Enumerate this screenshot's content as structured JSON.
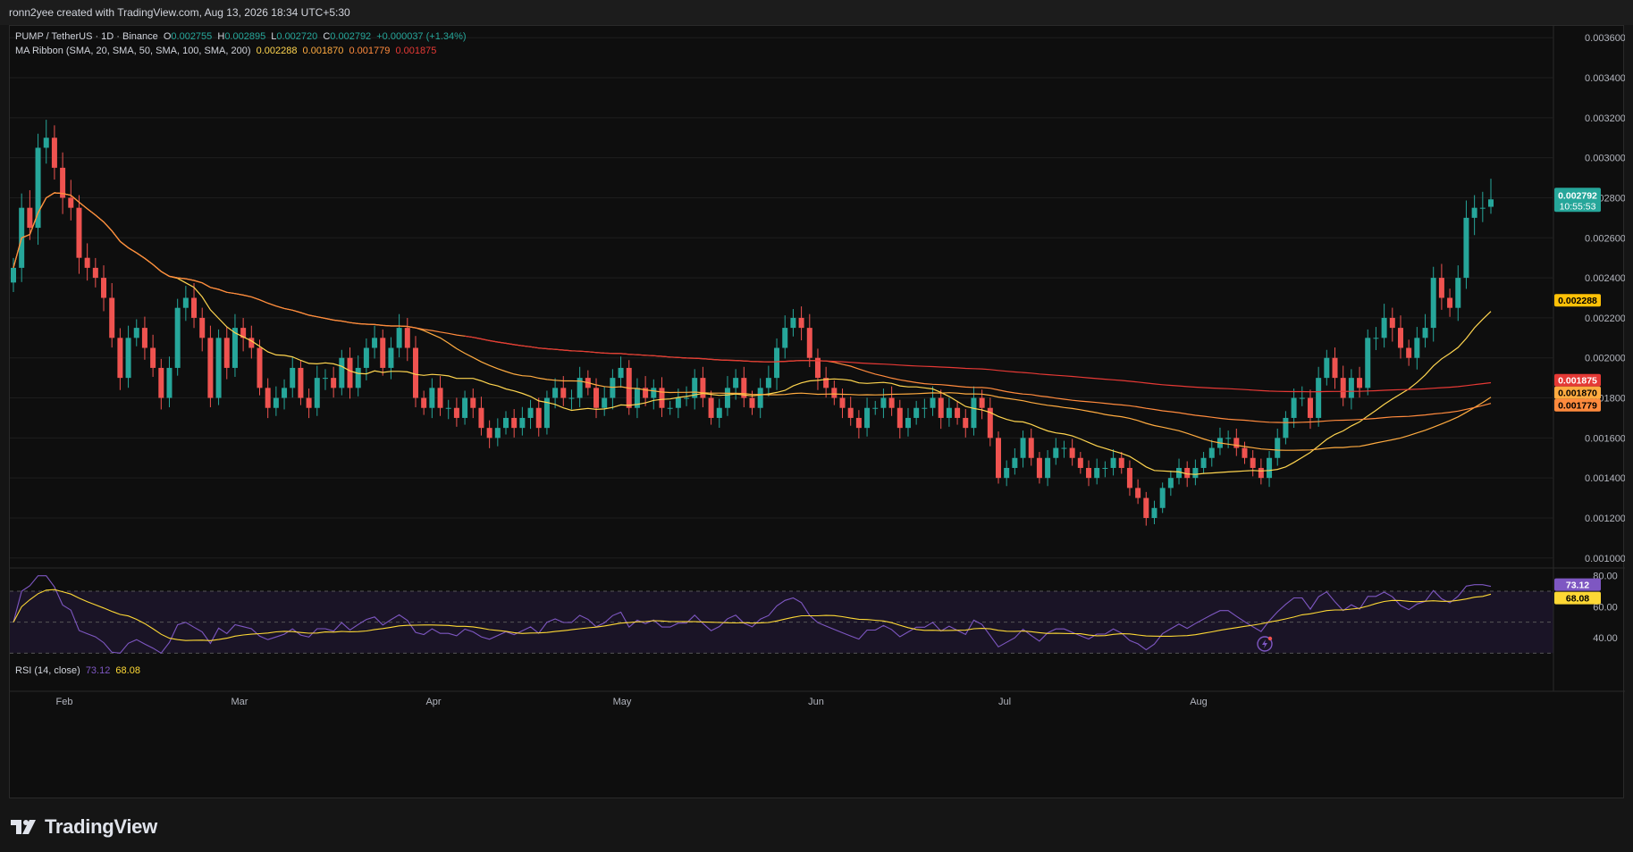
{
  "header": {
    "text": "ronn2yee created with TradingView.com, Aug 13, 2026 18:34 UTC+5:30"
  },
  "legend": {
    "symbol": "PUMP / TetherUS · 1D · Binance",
    "o_label": "O",
    "o_value": "0.002755",
    "h_label": "H",
    "h_value": "0.002895",
    "l_label": "L",
    "l_value": "0.002720",
    "c_label": "C",
    "c_value": "0.002792",
    "change": "+0.000037 (+1.34%)",
    "ma_title": "MA Ribbon (SMA, 20, SMA, 50, SMA, 100, SMA, 200)",
    "ma_values": [
      "0.002288",
      "0.001870",
      "0.001779",
      "0.001875"
    ],
    "rsi_title": "RSI (14, close)",
    "rsi_values": [
      "73.12",
      "68.08"
    ]
  },
  "price_axis": {
    "labels": [
      "0.003600",
      "0.003400",
      "0.003200",
      "0.003000",
      "0.002800",
      "0.002600",
      "0.002400",
      "0.002200",
      "0.002000",
      "0.001800",
      "0.001600",
      "0.001400",
      "0.001200",
      "0.001000"
    ],
    "last_price": "0.002792",
    "countdown": "10:55:53",
    "ma_badges": [
      "0.002288",
      "0.001875",
      "0.001870",
      "0.001779"
    ]
  },
  "rsi_axis": {
    "labels": [
      "80.00",
      "60.00",
      "40.00"
    ],
    "badges": [
      "73.12",
      "68.08"
    ]
  },
  "time_axis": {
    "labels": [
      "Feb",
      "Mar",
      "Apr",
      "May",
      "Jun",
      "Jul",
      "Aug"
    ]
  },
  "brand": {
    "name": "TradingView"
  },
  "colors": {
    "bull": "#26a69a",
    "bear": "#ef5350",
    "sma20": "#ffd54f",
    "sma50": "#ffab40",
    "sma100": "#ff8a3d",
    "sma200": "#e53935",
    "rsi": "#7e57c2",
    "rsi_ma": "#fdd835"
  },
  "chart_data": {
    "type": "candlestick",
    "title": "PUMP / TetherUS · 1D · Binance",
    "ylim": [
      0.00095,
      0.00365
    ],
    "rsi_ylim": [
      25,
      85
    ],
    "x_labels": [
      "Feb",
      "Mar",
      "Apr",
      "May",
      "Jun",
      "Jul",
      "Aug"
    ],
    "last": {
      "open": 0.002755,
      "high": 0.002895,
      "low": 0.00272,
      "close": 0.002792
    },
    "closes": [
      0.00245,
      0.00275,
      0.00265,
      0.00305,
      0.0031,
      0.00295,
      0.0028,
      0.00275,
      0.0025,
      0.00245,
      0.0024,
      0.0023,
      0.0021,
      0.0019,
      0.0021,
      0.00215,
      0.00205,
      0.00195,
      0.0018,
      0.00195,
      0.00225,
      0.0023,
      0.0022,
      0.0021,
      0.0018,
      0.0021,
      0.00195,
      0.00215,
      0.0021,
      0.00205,
      0.00185,
      0.00175,
      0.0018,
      0.00185,
      0.00195,
      0.0018,
      0.00175,
      0.0019,
      0.0019,
      0.00185,
      0.002,
      0.00185,
      0.00195,
      0.00205,
      0.0021,
      0.00195,
      0.00205,
      0.00215,
      0.00205,
      0.0018,
      0.00175,
      0.00185,
      0.00175,
      0.00175,
      0.0017,
      0.0018,
      0.00175,
      0.00165,
      0.0016,
      0.00165,
      0.0017,
      0.00165,
      0.0017,
      0.00175,
      0.00165,
      0.0018,
      0.00185,
      0.0018,
      0.0018,
      0.0019,
      0.00185,
      0.00175,
      0.0018,
      0.0019,
      0.00195,
      0.00175,
      0.00185,
      0.0018,
      0.00185,
      0.00175,
      0.00175,
      0.0018,
      0.0018,
      0.0019,
      0.0018,
      0.0017,
      0.00175,
      0.00185,
      0.0019,
      0.0018,
      0.00175,
      0.00185,
      0.0019,
      0.00205,
      0.00215,
      0.0022,
      0.00215,
      0.002,
      0.0019,
      0.00185,
      0.0018,
      0.00175,
      0.0017,
      0.00165,
      0.00175,
      0.00175,
      0.0018,
      0.00175,
      0.00165,
      0.0017,
      0.00175,
      0.00175,
      0.0018,
      0.0017,
      0.00175,
      0.0017,
      0.00165,
      0.0018,
      0.00175,
      0.0016,
      0.0014,
      0.00145,
      0.0015,
      0.0016,
      0.0015,
      0.0014,
      0.0015,
      0.00155,
      0.00155,
      0.0015,
      0.00145,
      0.0014,
      0.00145,
      0.00145,
      0.0015,
      0.00145,
      0.00135,
      0.0013,
      0.0012,
      0.00125,
      0.00135,
      0.0014,
      0.00145,
      0.0014,
      0.00145,
      0.0015,
      0.00155,
      0.0016,
      0.0016,
      0.00155,
      0.0015,
      0.00145,
      0.0014,
      0.0015,
      0.0016,
      0.0017,
      0.0018,
      0.0018,
      0.0017,
      0.0019,
      0.002,
      0.0019,
      0.0018,
      0.0019,
      0.00185,
      0.0021,
      0.0021,
      0.0022,
      0.00215,
      0.00205,
      0.002,
      0.0021,
      0.00215,
      0.0024,
      0.0023,
      0.00225,
      0.0024,
      0.0027,
      0.00275,
      0.00275,
      0.002792
    ]
  }
}
